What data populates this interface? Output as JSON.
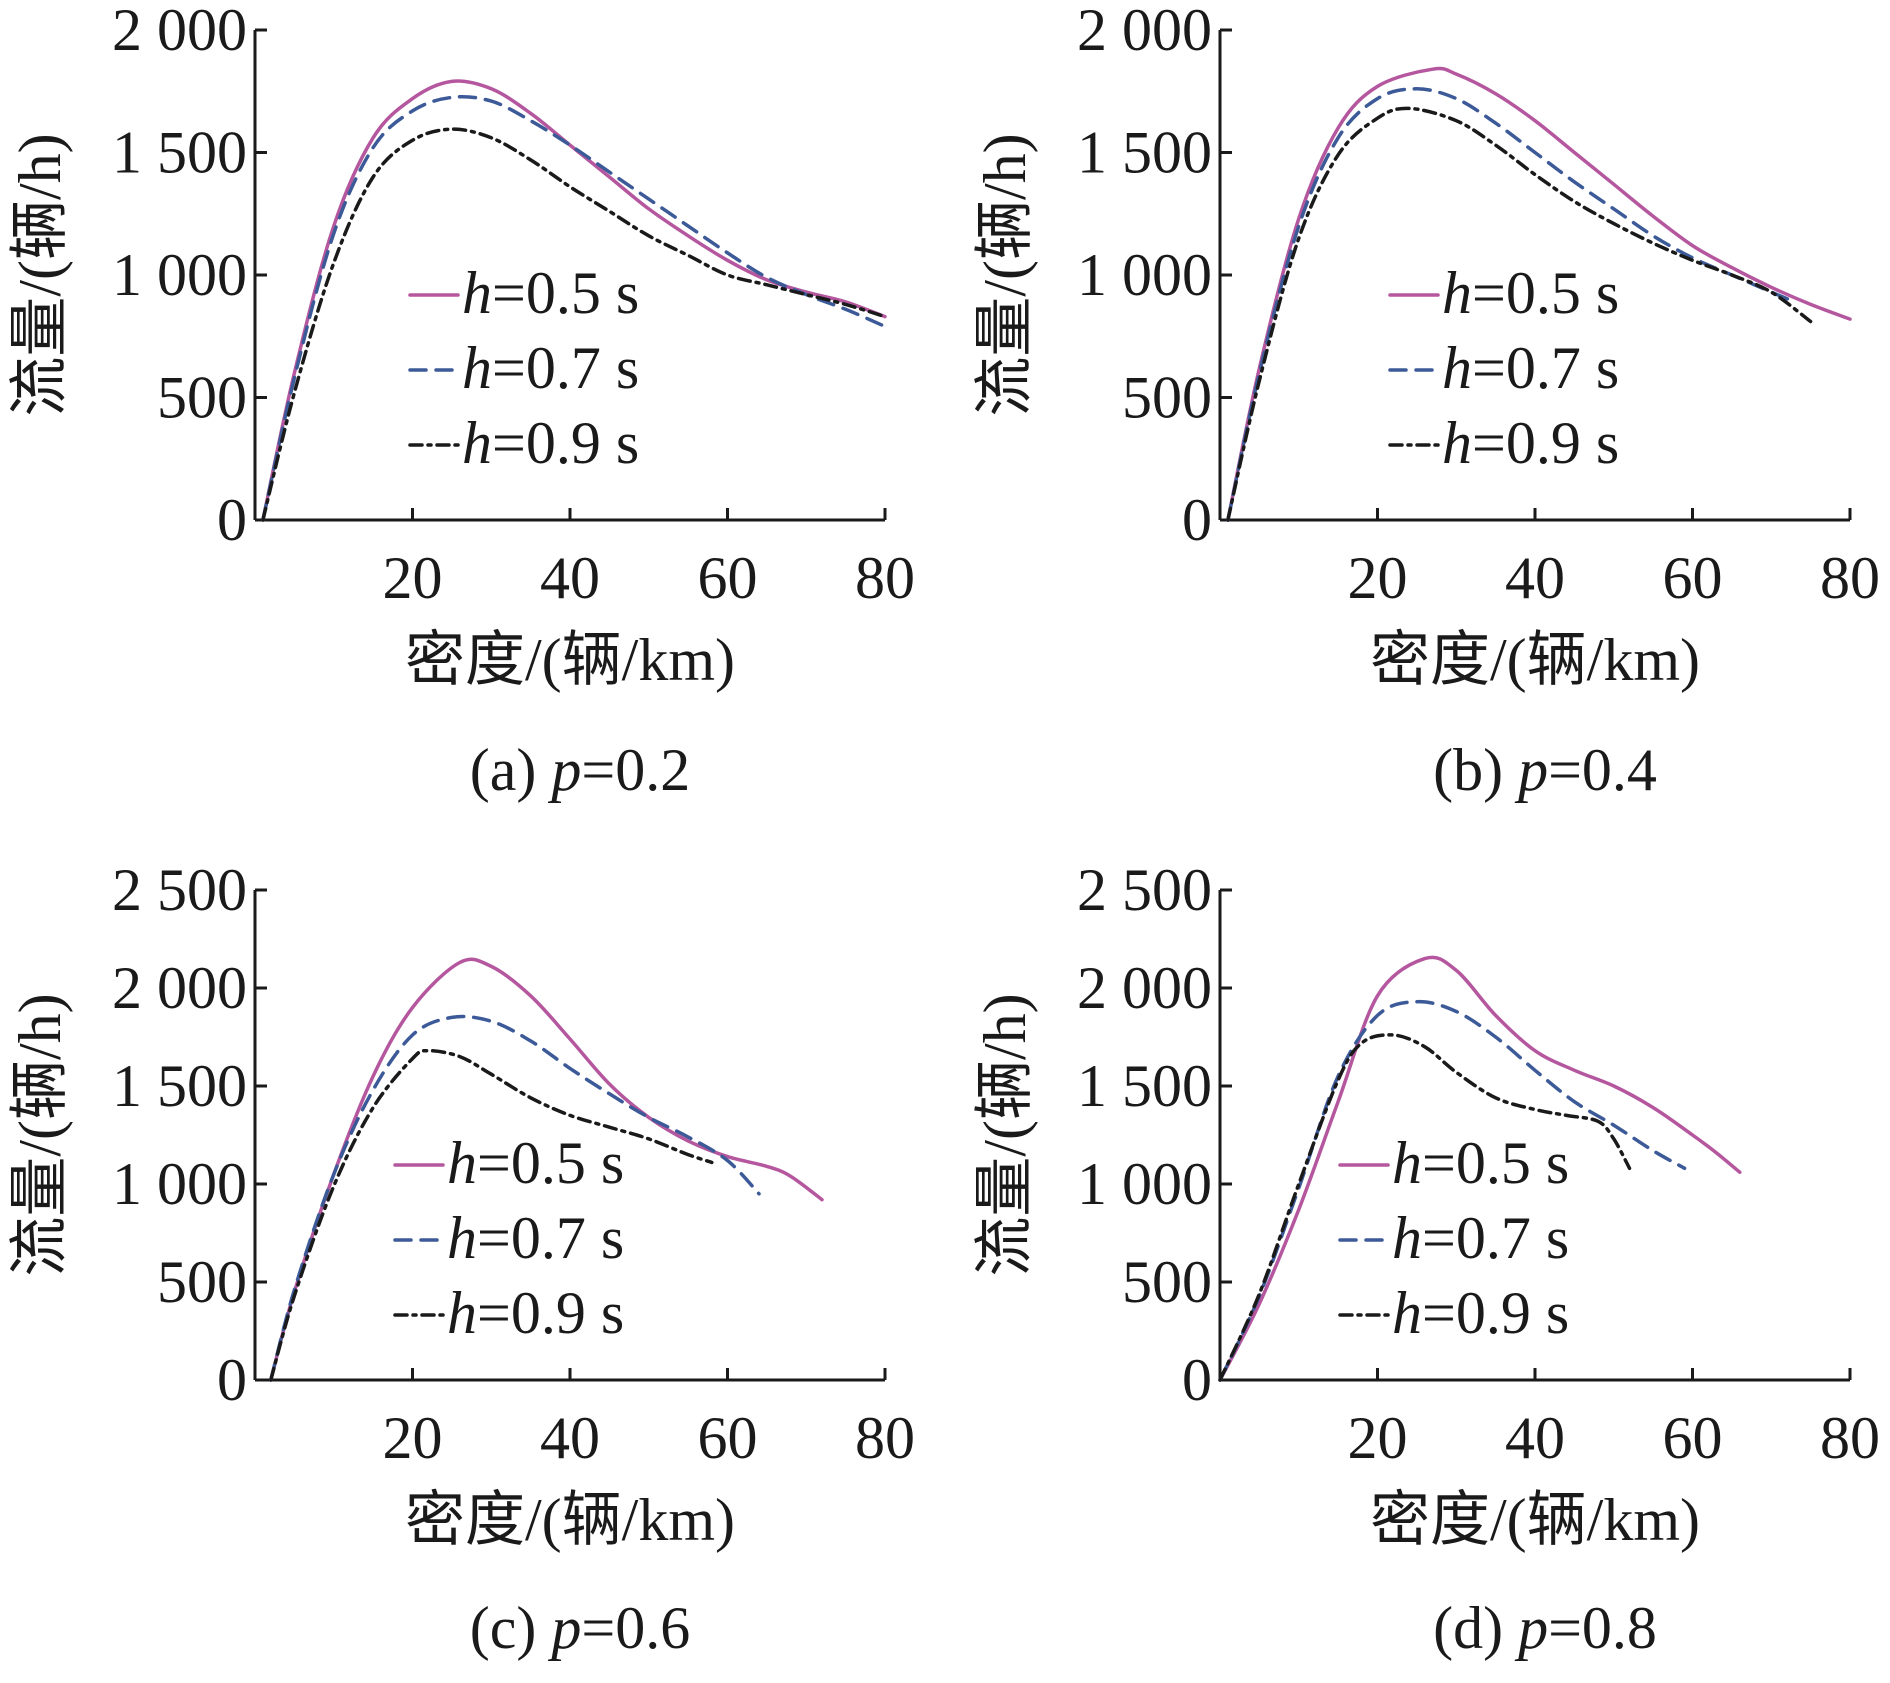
{
  "series_styles": [
    {
      "color": "#b5579e",
      "dash": "none"
    },
    {
      "color": "#3d5a98",
      "dash": "16,10"
    },
    {
      "color": "#1a1a1a",
      "dash": "12,6,3,6"
    }
  ],
  "chart_data": [
    {
      "id": "a",
      "type": "line",
      "caption_prefix": "(a) ",
      "caption_var": "p",
      "caption_value": "=0.2",
      "xlabel": "密度/(辆/km)",
      "ylabel": "流量/(辆/h)",
      "xlim": [
        0,
        80
      ],
      "ylim": [
        0,
        2000
      ],
      "xticks": [
        20,
        40,
        60,
        80
      ],
      "yticks": [
        0,
        500,
        1000,
        1500,
        2000
      ],
      "ytick_labels": [
        "0",
        "500",
        "1 000",
        "1 500",
        "2 000"
      ],
      "legend": "center",
      "series": [
        {
          "name_var": "h",
          "name_value": "=0.5 s",
          "x": [
            1,
            5,
            10,
            15,
            20,
            25,
            30,
            35,
            40,
            45,
            50,
            55,
            60,
            65,
            70,
            75,
            80
          ],
          "y": [
            0,
            600,
            1200,
            1560,
            1720,
            1790,
            1760,
            1660,
            1530,
            1400,
            1270,
            1160,
            1060,
            980,
            930,
            890,
            830
          ]
        },
        {
          "name_var": "h",
          "name_value": "=0.7 s",
          "x": [
            1,
            5,
            10,
            15,
            20,
            25,
            30,
            35,
            40,
            45,
            50,
            55,
            60,
            65,
            70,
            75,
            80
          ],
          "y": [
            0,
            580,
            1170,
            1520,
            1670,
            1725,
            1710,
            1630,
            1530,
            1420,
            1310,
            1200,
            1090,
            990,
            920,
            860,
            790
          ]
        },
        {
          "name_var": "h",
          "name_value": "=0.9 s",
          "x": [
            1,
            5,
            10,
            15,
            20,
            25,
            30,
            35,
            40,
            45,
            50,
            55,
            60,
            65,
            70,
            75,
            80
          ],
          "y": [
            0,
            520,
            1050,
            1400,
            1550,
            1595,
            1560,
            1470,
            1360,
            1260,
            1160,
            1080,
            1000,
            960,
            920,
            880,
            830
          ]
        }
      ]
    },
    {
      "id": "b",
      "type": "line",
      "caption_prefix": "(b) ",
      "caption_var": "p",
      "caption_value": "=0.4",
      "xlabel": "密度/(辆/km)",
      "ylabel": "流量/(辆/h)",
      "xlim": [
        0,
        80
      ],
      "ylim": [
        0,
        2000
      ],
      "xticks": [
        20,
        40,
        60,
        80
      ],
      "yticks": [
        0,
        500,
        1000,
        1500,
        2000
      ],
      "ytick_labels": [
        "0",
        "500",
        "1 000",
        "1 500",
        "2 000"
      ],
      "legend": "center",
      "series": [
        {
          "name_var": "h",
          "name_value": "=0.5 s",
          "x": [
            1,
            5,
            10,
            15,
            20,
            27,
            30,
            35,
            40,
            45,
            50,
            55,
            60,
            65,
            70,
            75,
            80
          ],
          "y": [
            0,
            620,
            1230,
            1600,
            1770,
            1840,
            1820,
            1740,
            1630,
            1500,
            1370,
            1240,
            1120,
            1030,
            950,
            880,
            820
          ]
        },
        {
          "name_var": "h",
          "name_value": "=0.7 s",
          "x": [
            1,
            5,
            10,
            15,
            20,
            25,
            30,
            35,
            40,
            45,
            50,
            55,
            60,
            65,
            70,
            73
          ],
          "y": [
            0,
            600,
            1200,
            1560,
            1720,
            1760,
            1720,
            1620,
            1500,
            1380,
            1270,
            1160,
            1070,
            1000,
            930,
            890
          ]
        },
        {
          "name_var": "h",
          "name_value": "=0.9 s",
          "x": [
            1,
            5,
            10,
            15,
            20,
            24,
            30,
            35,
            40,
            45,
            50,
            55,
            60,
            65,
            70,
            75
          ],
          "y": [
            0,
            570,
            1150,
            1490,
            1640,
            1680,
            1630,
            1530,
            1410,
            1300,
            1210,
            1130,
            1060,
            1000,
            930,
            810
          ]
        }
      ]
    },
    {
      "id": "c",
      "type": "line",
      "caption_prefix": "(c) ",
      "caption_var": "p",
      "caption_value": "=0.6",
      "xlabel": "密度/(辆/km)",
      "ylabel": "流量/(辆/h)",
      "xlim": [
        0,
        80
      ],
      "ylim": [
        0,
        2500
      ],
      "xticks": [
        20,
        40,
        60,
        80
      ],
      "yticks": [
        0,
        500,
        1000,
        1500,
        2000,
        2500
      ],
      "ytick_labels": [
        "0",
        "500",
        "1 000",
        "1 500",
        "2 000",
        "2 500"
      ],
      "legend": "bottom-center",
      "series": [
        {
          "name_var": "h",
          "name_value": "=0.5 s",
          "x": [
            2,
            5,
            10,
            15,
            20,
            26,
            30,
            35,
            40,
            45,
            50,
            55,
            60,
            65,
            68,
            72
          ],
          "y": [
            0,
            450,
            1050,
            1550,
            1900,
            2130,
            2110,
            1960,
            1740,
            1510,
            1340,
            1220,
            1140,
            1090,
            1040,
            920
          ]
        },
        {
          "name_var": "h",
          "name_value": "=0.7 s",
          "x": [
            2,
            5,
            10,
            15,
            20,
            25,
            30,
            35,
            40,
            45,
            50,
            55,
            60,
            64
          ],
          "y": [
            0,
            460,
            1050,
            1480,
            1760,
            1850,
            1830,
            1730,
            1590,
            1460,
            1340,
            1240,
            1120,
            950
          ]
        },
        {
          "name_var": "h",
          "name_value": "=0.9 s",
          "x": [
            2,
            5,
            10,
            15,
            20,
            22,
            26,
            30,
            35,
            40,
            45,
            50,
            55,
            58
          ],
          "y": [
            0,
            430,
            990,
            1390,
            1640,
            1680,
            1650,
            1560,
            1440,
            1350,
            1290,
            1230,
            1150,
            1110
          ]
        }
      ]
    },
    {
      "id": "d",
      "type": "line",
      "caption_prefix": "(d) ",
      "caption_var": "p",
      "caption_value": "=0.8",
      "xlabel": "密度/(辆/km)",
      "ylabel": "流量/(辆/h)",
      "xlim": [
        0,
        80
      ],
      "ylim": [
        0,
        2500
      ],
      "xticks": [
        20,
        40,
        60,
        80
      ],
      "yticks": [
        0,
        500,
        1000,
        1500,
        2000,
        2500
      ],
      "ytick_labels": [
        "0",
        "500",
        "1 000",
        "1 500",
        "2 000",
        "2 500"
      ],
      "legend": "bottom-center",
      "series": [
        {
          "name_var": "h",
          "name_value": "=0.5 s",
          "x": [
            0,
            5,
            10,
            15,
            20,
            26,
            30,
            35,
            40,
            45,
            50,
            55,
            60,
            63,
            66
          ],
          "y": [
            0,
            390,
            870,
            1420,
            1960,
            2150,
            2090,
            1860,
            1680,
            1580,
            1500,
            1390,
            1250,
            1160,
            1060
          ]
        },
        {
          "name_var": "h",
          "name_value": "=0.7 s",
          "x": [
            0,
            5,
            10,
            15,
            20,
            25,
            30,
            35,
            40,
            45,
            50,
            55,
            59
          ],
          "y": [
            0,
            430,
            980,
            1550,
            1860,
            1930,
            1880,
            1750,
            1580,
            1420,
            1300,
            1170,
            1080
          ]
        },
        {
          "name_var": "h",
          "name_value": "=0.9 s",
          "x": [
            0,
            5,
            10,
            15,
            18,
            22,
            26,
            30,
            35,
            40,
            44,
            48,
            50,
            52
          ],
          "y": [
            0,
            440,
            1000,
            1530,
            1720,
            1760,
            1700,
            1570,
            1440,
            1380,
            1350,
            1320,
            1230,
            1080
          ]
        }
      ]
    }
  ]
}
